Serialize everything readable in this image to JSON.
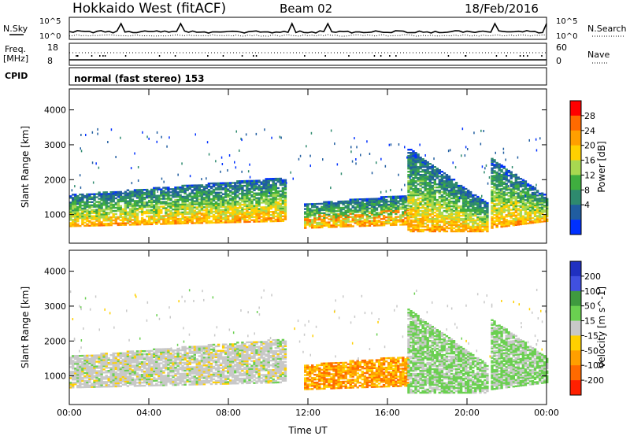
{
  "header": {
    "radar": "Hokkaido West (fitACF)",
    "beam": "Beam 02",
    "date": "18/Feb/2016"
  },
  "summary": {
    "nsky_label": "N.Sky",
    "nsky_ticks": [
      "10^5",
      "10^0"
    ],
    "nsearch_label": "N.Search",
    "nsearch_ticks": [
      "10^5",
      "10^0"
    ],
    "freq_label": "Freq.",
    "freq_unit": "[MHz]",
    "freq_ticks": [
      "18",
      "8"
    ],
    "nave_label": "Nave",
    "nave_ticks": [
      "60",
      "0"
    ],
    "cpid_label": "CPID",
    "cpid_text": "normal (fast stereo) 153"
  },
  "chart_data": [
    {
      "type": "heatmap",
      "name": "power",
      "ylabel": "Slant Range [km]",
      "yticks": [
        1000,
        2000,
        3000,
        4000
      ],
      "ylim": [
        180,
        4600
      ],
      "xlabel": "",
      "xticks": [
        "00:00",
        "04:00",
        "08:00",
        "12:00",
        "16:00",
        "20:00",
        "00:00"
      ],
      "xlim_hours": [
        0,
        24
      ],
      "colorbar": {
        "label": "Power [dB]",
        "ticks": [
          "28",
          "24",
          "20",
          "16",
          "12",
          "8",
          "4"
        ],
        "colors": [
          "#ff0000",
          "#ff6a00",
          "#ff9f00",
          "#ffd000",
          "#a8d850",
          "#3fae3f",
          "#2e8a6e",
          "#205da0",
          "#0030ff"
        ]
      },
      "regions": [
        {
          "t0": 0.0,
          "t1": 10.8,
          "r0_start": 650,
          "r0_end": 800,
          "r1_start": 1550,
          "r1_end": 2050,
          "peak_db": 20
        },
        {
          "t0": 11.8,
          "t1": 17.0,
          "r0_start": 600,
          "r0_end": 700,
          "r1_start": 1300,
          "r1_end": 1550,
          "peak_db": 26
        },
        {
          "t0": 17.0,
          "t1": 21.0,
          "r0_start": 500,
          "r0_end": 500,
          "r1_start": 2900,
          "r1_end": 1300,
          "peak_db": 16
        },
        {
          "t0": 21.2,
          "t1": 24.0,
          "r0_start": 600,
          "r0_end": 800,
          "r1_start": 2600,
          "r1_end": 1500,
          "peak_db": 18
        }
      ]
    },
    {
      "type": "heatmap",
      "name": "velocity",
      "ylabel": "Slant Range [km]",
      "yticks": [
        1000,
        2000,
        3000,
        4000
      ],
      "ylim": [
        180,
        4600
      ],
      "xlabel": "Time UT",
      "xticks": [
        "00:00",
        "04:00",
        "08:00",
        "12:00",
        "16:00",
        "20:00",
        "00:00"
      ],
      "xlim_hours": [
        0,
        24
      ],
      "colorbar": {
        "label": "Velocity [m s^-1]",
        "ticks": [
          "200",
          "100",
          "50",
          "15",
          "-15",
          "-50",
          "-100",
          "-200"
        ],
        "colors": [
          "#2030c0",
          "#4050e0",
          "#3f9a3f",
          "#6ad050",
          "#c8c8c8",
          "#ffd000",
          "#ff9f00",
          "#ff6a00",
          "#ff2000"
        ]
      },
      "regions": [
        {
          "t0": 0.0,
          "t1": 10.8,
          "r0_start": 650,
          "r0_end": 800,
          "r1_start": 1550,
          "r1_end": 2050,
          "vel": -10
        },
        {
          "t0": 11.8,
          "t1": 17.0,
          "r0_start": 600,
          "r0_end": 700,
          "r1_start": 1300,
          "r1_end": 1550,
          "vel": -80
        },
        {
          "t0": 17.0,
          "t1": 21.0,
          "r0_start": 500,
          "r0_end": 500,
          "r1_start": 2900,
          "r1_end": 1300,
          "vel": 30
        },
        {
          "t0": 21.2,
          "t1": 24.0,
          "r0_start": 600,
          "r0_end": 800,
          "r1_start": 2600,
          "r1_end": 1500,
          "vel": 20
        }
      ]
    }
  ]
}
